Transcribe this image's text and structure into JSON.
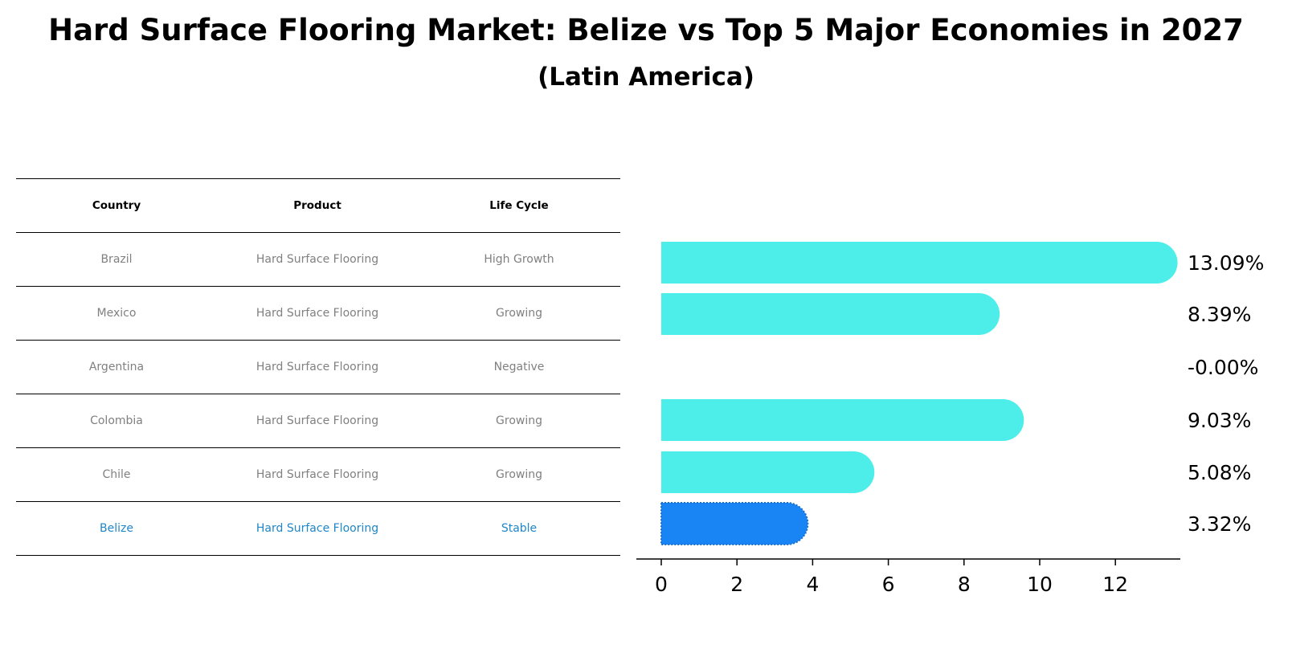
{
  "title": "Hard Surface Flooring Market: Belize vs Top 5 Major Economies in 2027",
  "subtitle": "(Latin America)",
  "table": {
    "headers": [
      "Country",
      "Product",
      "Life Cycle"
    ],
    "rows": [
      [
        "Brazil",
        "Hard Surface Flooring",
        "High Growth"
      ],
      [
        "Mexico",
        "Hard Surface Flooring",
        "Growing"
      ],
      [
        "Argentina",
        "Hard Surface Flooring",
        "Negative"
      ],
      [
        "Colombia",
        "Hard Surface Flooring",
        "Growing"
      ],
      [
        "Chile",
        "Hard Surface Flooring",
        "Growing"
      ],
      [
        "Belize",
        "Hard Surface Flooring",
        "Stable"
      ]
    ],
    "highlight_row": 5
  },
  "colors": {
    "bar": "#4deeea",
    "highlight_bar": "#1985f5",
    "highlight_text": "#1f86c8",
    "row_text": "#808080"
  },
  "chart_data": {
    "type": "bar",
    "orientation": "horizontal",
    "categories": [
      "Brazil",
      "Mexico",
      "Argentina",
      "Colombia",
      "Chile",
      "Belize"
    ],
    "values": [
      13.09,
      8.39,
      -0.0,
      9.03,
      5.08,
      3.32
    ],
    "value_labels": [
      "13.09%",
      "8.39%",
      "-0.00%",
      "9.03%",
      "5.08%",
      "3.32%"
    ],
    "highlight_index": 5,
    "xlim": [
      -0.65,
      13.8
    ],
    "xticks": [
      0,
      2,
      4,
      6,
      8,
      10,
      12
    ],
    "xtick_labels": [
      "0",
      "2",
      "4",
      "6",
      "8",
      "10",
      "12"
    ],
    "title": "",
    "xlabel": "",
    "ylabel": ""
  }
}
